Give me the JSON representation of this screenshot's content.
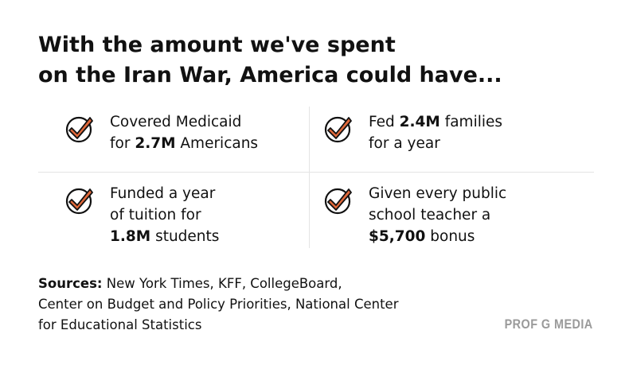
{
  "header": {
    "title_lines": [
      "With the amount we've spent",
      "on the Iran War, America could have..."
    ]
  },
  "items": [
    {
      "lines": [
        [
          {
            "text": "Covered Medicaid",
            "bold": false
          }
        ],
        [
          {
            "text": "for ",
            "bold": false
          },
          {
            "text": "2.7M",
            "bold": true
          },
          {
            "text": " Americans",
            "bold": false
          }
        ]
      ]
    },
    {
      "lines": [
        [
          {
            "text": "Fed ",
            "bold": false
          },
          {
            "text": "2.4M",
            "bold": true
          },
          {
            "text": " families",
            "bold": false
          }
        ],
        [
          {
            "text": "for a year",
            "bold": false
          }
        ]
      ]
    },
    {
      "lines": [
        [
          {
            "text": "Funded a year",
            "bold": false
          }
        ],
        [
          {
            "text": "of tuition for",
            "bold": false
          }
        ],
        [
          {
            "text": "1.8M",
            "bold": true
          },
          {
            "text": " students",
            "bold": false
          }
        ]
      ]
    },
    {
      "lines": [
        [
          {
            "text": "Given every public",
            "bold": false
          }
        ],
        [
          {
            "text": "school teacher a",
            "bold": false
          }
        ],
        [
          {
            "text": "$5,700",
            "bold": true
          },
          {
            "text": " bonus",
            "bold": false
          }
        ]
      ]
    }
  ],
  "sources": {
    "label": "Sources:",
    "lines": [
      " New York Times, KFF, CollegeBoard,",
      "Center on Budget and Policy Priorities, National Center",
      "for Educational Statistics"
    ]
  },
  "brand": "PROF G MEDIA"
}
